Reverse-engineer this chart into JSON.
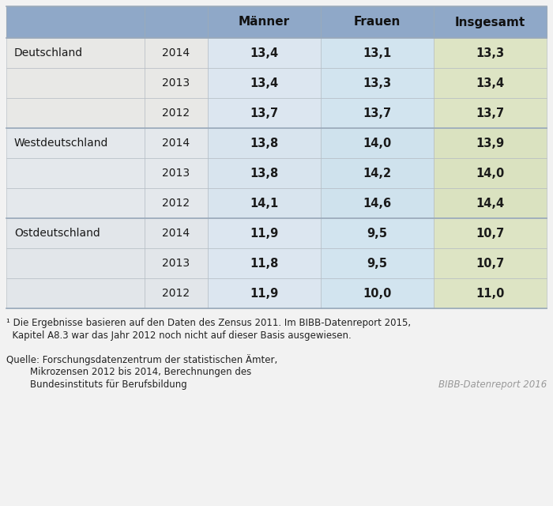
{
  "col_headers": [
    "",
    "",
    "Männer",
    "Frauen",
    "Insgesamt"
  ],
  "rows": [
    [
      "Deutschland",
      "2014",
      "13,4",
      "13,1",
      "13,3"
    ],
    [
      "",
      "2013",
      "13,4",
      "13,3",
      "13,4"
    ],
    [
      "",
      "2012",
      "13,7",
      "13,7",
      "13,7"
    ],
    [
      "Westdeutschland",
      "2014",
      "13,8",
      "14,0",
      "13,9"
    ],
    [
      "",
      "2013",
      "13,8",
      "14,2",
      "14,0"
    ],
    [
      "",
      "2012",
      "14,1",
      "14,6",
      "14,4"
    ],
    [
      "Ostdeutschland",
      "2014",
      "11,9",
      "9,5",
      "10,7"
    ],
    [
      "",
      "2013",
      "11,8",
      "9,5",
      "10,7"
    ],
    [
      "",
      "2012",
      "11,9",
      "10,0",
      "11,0"
    ]
  ],
  "footnote1": "¹ Die Ergebnisse basieren auf den Daten des Zensus 2011. Im BIBB-Datenreport 2015,",
  "footnote2": "  Kapitel A8.3 war das Jahr 2012 noch nicht auf dieser Basis ausgewiesen.",
  "source_line1": "Quelle: Forschungsdatenzentrum der statistischen Ämter,",
  "source_line2": "        Mikrozensen 2012 bis 2014, Berechnungen des",
  "source_line3": "        Bundesinstituts für Berufsbildung",
  "source_right": "BIBB-Datenreport 2016",
  "fig_bg": "#f2f2f2",
  "header_bg": "#8fa8c8",
  "group_col01_bgs": [
    "#e8e8e8",
    "#e4e8ec",
    "#e2e6ea"
  ],
  "group_col2_bgs": [
    "#dce6f0",
    "#dce6f0",
    "#dde6ef"
  ],
  "group_col3_bgs": [
    "#d5e5f0",
    "#d5e5f0",
    "#d5e4ef"
  ],
  "group_col4_bgs": [
    "#dde4c4",
    "#dde4c4",
    "#dce3c2"
  ],
  "separator_color": "#b0b8c0",
  "border_color": "#9aaabb",
  "text_color": "#1a1a1a",
  "footnote_color": "#222222",
  "source_right_color": "#999999"
}
